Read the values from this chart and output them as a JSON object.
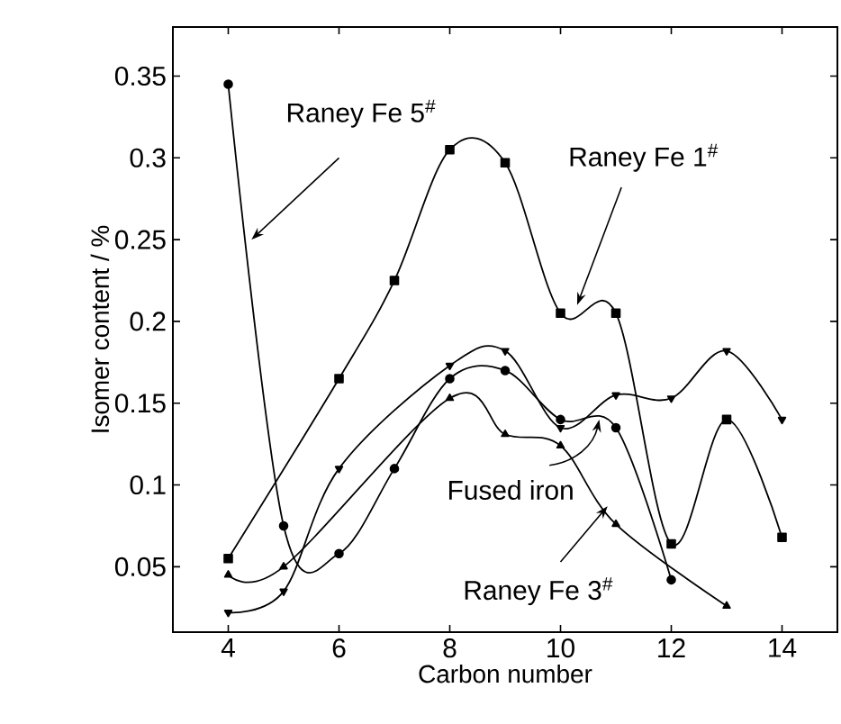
{
  "chart_data": {
    "type": "line",
    "xlabel": "Carbon number",
    "ylabel": "Isomer content / %",
    "xlim": [
      3,
      15
    ],
    "ylim": [
      0.01,
      0.38
    ],
    "xticks": [
      4,
      6,
      8,
      10,
      12,
      14
    ],
    "yticks": [
      0.05,
      0.1,
      0.15,
      0.2,
      0.25,
      0.3,
      0.35
    ],
    "grid": false,
    "annotations": [
      {
        "text": "Raney Fe 5$^{#}$",
        "x": 4.42,
        "y": 0.25
      },
      {
        "text": "Raney Fe 1$^{#}$",
        "x": 10.3,
        "y": 0.21
      },
      {
        "text": "Fused iron",
        "x": 10.7,
        "y": 0.14
      },
      {
        "text": "Raney Fe 3$^{#}$",
        "x": 10.85,
        "y": 0.087
      }
    ],
    "series": [
      {
        "color": "#000000",
        "marker": "circle",
        "x": [
          4,
          5,
          6,
          7,
          8,
          9,
          10,
          11,
          12
        ],
        "values": [
          0.345,
          0.075,
          0.058,
          0.11,
          0.165,
          0.17,
          0.14,
          0.135,
          0.042
        ]
      },
      {
        "color": "#000000",
        "marker": "square",
        "x": [
          4,
          6,
          7,
          8,
          9,
          10,
          11,
          12,
          13,
          14
        ],
        "values": [
          0.055,
          0.165,
          0.225,
          0.305,
          0.297,
          0.205,
          0.205,
          0.064,
          0.14,
          0.068
        ]
      },
      {
        "color": "#000000",
        "marker": "triangle_down",
        "x": [
          4,
          5,
          6,
          8,
          9,
          10,
          11,
          12,
          13,
          14
        ],
        "values": [
          0.022,
          0.035,
          0.11,
          0.173,
          0.182,
          0.135,
          0.155,
          0.153,
          0.182,
          0.14
        ]
      },
      {
        "color": "#000000",
        "marker": "triangle",
        "x": [
          4,
          5,
          8,
          9,
          10,
          11,
          13
        ],
        "values": [
          0.045,
          0.05,
          0.153,
          0.131,
          0.124,
          0.076,
          0.026
        ]
      }
    ]
  }
}
